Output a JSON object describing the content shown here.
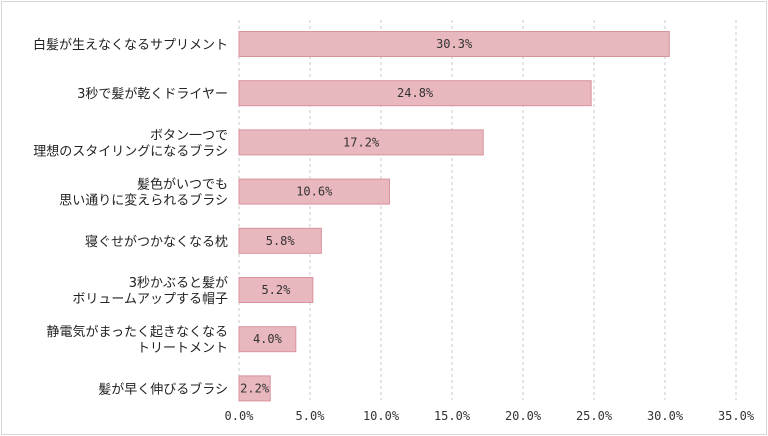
{
  "chart_data": {
    "type": "bar",
    "orientation": "horizontal",
    "categories": [
      [
        "白髪が生えなくなるサプリメント"
      ],
      [
        "3秒で髪が乾くドライヤー"
      ],
      [
        "ボタン一つで",
        "理想のスタイリングになるブラシ"
      ],
      [
        "髪色がいつでも",
        "思い通りに変えられるブラシ"
      ],
      [
        "寝ぐせがつかなくなる枕"
      ],
      [
        "3秒かぶると髪が",
        "ボリュームアップする帽子"
      ],
      [
        "静電気がまったく起きなくなる",
        "トリートメント"
      ],
      [
        "髪が早く伸びるブラシ"
      ]
    ],
    "values": [
      30.3,
      24.8,
      17.2,
      10.6,
      5.8,
      5.2,
      4.0,
      2.2
    ],
    "value_labels": [
      "30.3%",
      "24.8%",
      "17.2%",
      "10.6%",
      "5.8%",
      "5.2%",
      "4.0%",
      "2.2%"
    ],
    "xlim": [
      0,
      35
    ],
    "ticks": [
      0,
      5,
      10,
      15,
      20,
      25,
      30,
      35
    ],
    "tick_labels": [
      "0.0%",
      "5.0%",
      "10.0%",
      "15.0%",
      "20.0%",
      "25.0%",
      "30.0%",
      "35.0%"
    ],
    "grid": "vertical-dashed",
    "colors": {
      "bar_fill": "#e9b8bf",
      "bar_stroke": "#d9929d",
      "grid": "#c8c8c8"
    }
  }
}
